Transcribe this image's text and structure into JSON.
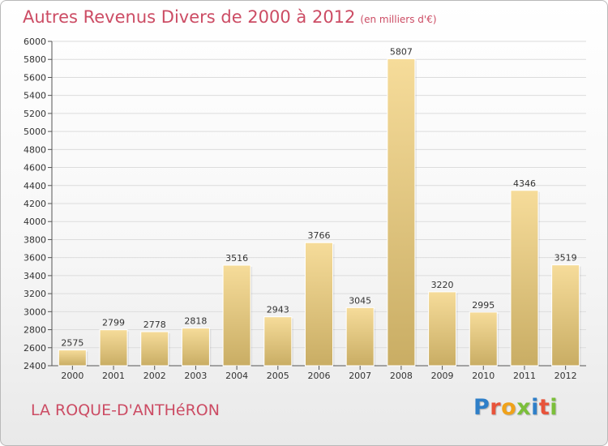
{
  "title": "Autres Revenus Divers de 2000 à 2012",
  "title_unit": "(en milliers d'€)",
  "location": "LA ROQUE-D'ANTHéRON",
  "logo": {
    "text": "Proxiti",
    "colors": [
      "#2f7fc8",
      "#e8533a",
      "#f0a21a",
      "#7bbf3a",
      "#2f7fc8",
      "#e8533a",
      "#7bbf3a"
    ]
  },
  "colors": {
    "title": "#cc4c64",
    "bar_top": "#f6dc9a",
    "bar_bottom": "#c9ad64",
    "grid": "#dcdcdc",
    "axis": "#555555"
  },
  "chart_data": {
    "type": "bar",
    "title": "Autres Revenus Divers de 2000 à 2012",
    "xlabel": "",
    "ylabel": "",
    "categories": [
      "2000",
      "2001",
      "2002",
      "2003",
      "2004",
      "2005",
      "2006",
      "2007",
      "2008",
      "2009",
      "2010",
      "2011",
      "2012"
    ],
    "values": [
      2575,
      2799,
      2778,
      2818,
      3516,
      2943,
      3766,
      3045,
      5807,
      3220,
      2995,
      4346,
      3519
    ],
    "ylim": [
      2400,
      6000
    ],
    "yticks": [
      2400,
      2600,
      2800,
      3000,
      3200,
      3400,
      3600,
      3800,
      4000,
      4200,
      4400,
      4600,
      4800,
      5000,
      5200,
      5400,
      5600,
      5800,
      6000
    ],
    "grid": true,
    "legend": "none"
  }
}
